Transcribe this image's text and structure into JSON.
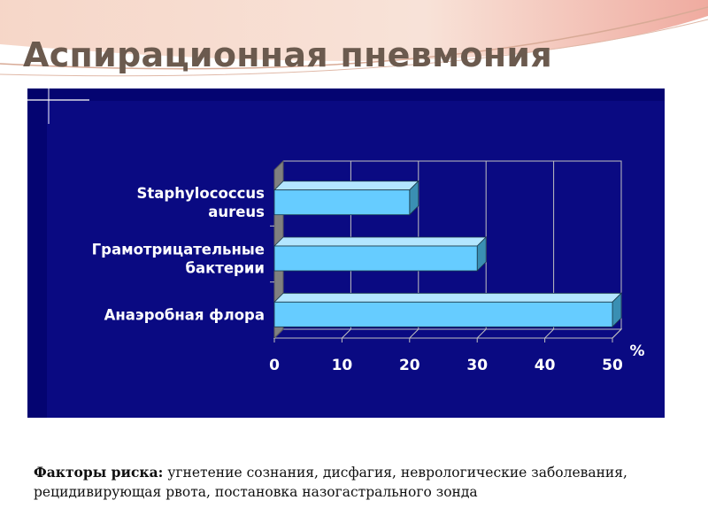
{
  "slide": {
    "title": "Аспирационная пневмония"
  },
  "footnote": {
    "label": "Факторы риска:",
    "text": " угнетение сознания, дисфагия, неврологические заболевания, рецидивирующая рвота, постановка назогастрального зонда"
  },
  "colors": {
    "title": "#6b5a4e",
    "panel_bg": "#0a0a82",
    "bar_front": "#66ccff",
    "bar_top": "#b3e6ff",
    "bar_side": "#3a8fb3",
    "wall": "#808080",
    "gridline": "#c0c0c0"
  },
  "chart_data": {
    "type": "bar",
    "orientation": "horizontal",
    "categories": [
      "Staphylococcus aureus",
      "Грамотрицательные бактерии",
      "Анаэробная флора"
    ],
    "category_lines": [
      [
        "Staphylococcus",
        "aureus"
      ],
      [
        "Грамотрицательные",
        "бактерии"
      ],
      [
        "Анаэробная флора"
      ]
    ],
    "values": [
      20,
      30,
      50
    ],
    "xlim": [
      0,
      50
    ],
    "x_ticks": [
      0,
      10,
      20,
      30,
      40,
      50
    ],
    "x_tick_labels": [
      "0",
      "10",
      "20",
      "30",
      "40",
      "50"
    ],
    "x_unit": "%",
    "grid": "vertical",
    "style": "3d"
  }
}
